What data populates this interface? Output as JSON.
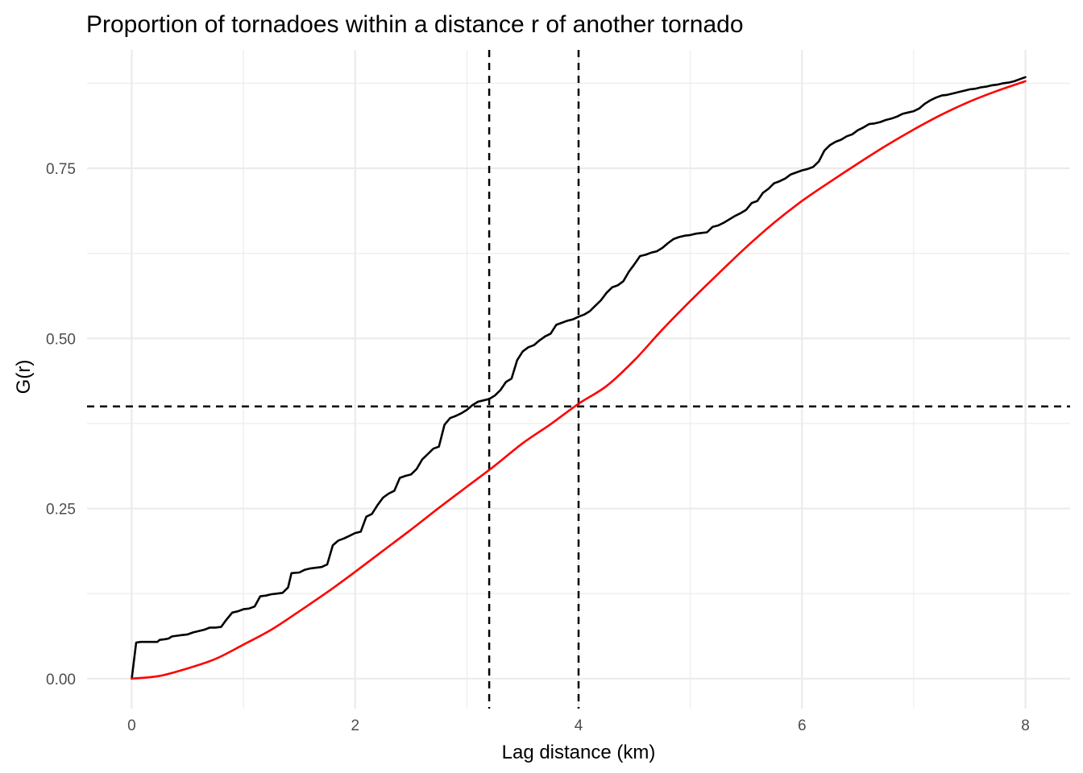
{
  "chart_data": {
    "type": "line",
    "title": "Proportion of tornadoes within a distance r of another tornado",
    "xlabel": "Lag distance (km)",
    "ylabel": "G(r)",
    "xlim": [
      -0.4,
      8.4
    ],
    "ylim": [
      -0.044,
      0.924
    ],
    "x_ticks": [
      "0",
      "2",
      "4",
      "6",
      "8"
    ],
    "y_ticks": [
      "0.00",
      "0.25",
      "0.50",
      "0.75"
    ],
    "grid": true,
    "legend": "none",
    "series": [
      {
        "color": "#000000",
        "points": [
          [
            0,
            0
          ],
          [
            0.04,
            0.053
          ],
          [
            0.08,
            0.054
          ],
          [
            0.15,
            0.054
          ],
          [
            0.2,
            0.054
          ],
          [
            0.23,
            0.054
          ],
          [
            0.25,
            0.057
          ],
          [
            0.3,
            0.058
          ],
          [
            0.33,
            0.059
          ],
          [
            0.36,
            0.062
          ],
          [
            0.4,
            0.063
          ],
          [
            0.45,
            0.064
          ],
          [
            0.5,
            0.065
          ],
          [
            0.55,
            0.068
          ],
          [
            0.6,
            0.07
          ],
          [
            0.65,
            0.072
          ],
          [
            0.7,
            0.075
          ],
          [
            0.75,
            0.075
          ],
          [
            0.8,
            0.076
          ],
          [
            0.84,
            0.085
          ],
          [
            0.9,
            0.097
          ],
          [
            0.95,
            0.099
          ],
          [
            1.0,
            0.102
          ],
          [
            1.05,
            0.103
          ],
          [
            1.1,
            0.106
          ],
          [
            1.15,
            0.121
          ],
          [
            1.2,
            0.122
          ],
          [
            1.25,
            0.124
          ],
          [
            1.3,
            0.125
          ],
          [
            1.35,
            0.126
          ],
          [
            1.4,
            0.134
          ],
          [
            1.43,
            0.155
          ],
          [
            1.5,
            0.156
          ],
          [
            1.55,
            0.16
          ],
          [
            1.6,
            0.162
          ],
          [
            1.65,
            0.163
          ],
          [
            1.7,
            0.164
          ],
          [
            1.75,
            0.168
          ],
          [
            1.8,
            0.196
          ],
          [
            1.85,
            0.203
          ],
          [
            1.9,
            0.206
          ],
          [
            1.95,
            0.21
          ],
          [
            2.0,
            0.214
          ],
          [
            2.05,
            0.216
          ],
          [
            2.1,
            0.238
          ],
          [
            2.15,
            0.242
          ],
          [
            2.2,
            0.255
          ],
          [
            2.25,
            0.266
          ],
          [
            2.3,
            0.272
          ],
          [
            2.35,
            0.276
          ],
          [
            2.4,
            0.295
          ],
          [
            2.45,
            0.298
          ],
          [
            2.5,
            0.3
          ],
          [
            2.55,
            0.308
          ],
          [
            2.6,
            0.322
          ],
          [
            2.65,
            0.33
          ],
          [
            2.7,
            0.338
          ],
          [
            2.75,
            0.341
          ],
          [
            2.8,
            0.373
          ],
          [
            2.85,
            0.383
          ],
          [
            2.9,
            0.386
          ],
          [
            2.95,
            0.39
          ],
          [
            3.0,
            0.395
          ],
          [
            3.05,
            0.402
          ],
          [
            3.1,
            0.407
          ],
          [
            3.15,
            0.409
          ],
          [
            3.2,
            0.411
          ],
          [
            3.25,
            0.416
          ],
          [
            3.3,
            0.424
          ],
          [
            3.35,
            0.436
          ],
          [
            3.4,
            0.441
          ],
          [
            3.45,
            0.468
          ],
          [
            3.5,
            0.481
          ],
          [
            3.55,
            0.487
          ],
          [
            3.6,
            0.49
          ],
          [
            3.65,
            0.497
          ],
          [
            3.7,
            0.503
          ],
          [
            3.75,
            0.507
          ],
          [
            3.8,
            0.52
          ],
          [
            3.85,
            0.523
          ],
          [
            3.9,
            0.526
          ],
          [
            3.95,
            0.528
          ],
          [
            4.0,
            0.532
          ],
          [
            4.05,
            0.535
          ],
          [
            4.1,
            0.54
          ],
          [
            4.15,
            0.548
          ],
          [
            4.2,
            0.556
          ],
          [
            4.25,
            0.567
          ],
          [
            4.3,
            0.575
          ],
          [
            4.35,
            0.578
          ],
          [
            4.4,
            0.584
          ],
          [
            4.45,
            0.598
          ],
          [
            4.5,
            0.609
          ],
          [
            4.55,
            0.621
          ],
          [
            4.6,
            0.623
          ],
          [
            4.65,
            0.626
          ],
          [
            4.7,
            0.628
          ],
          [
            4.75,
            0.633
          ],
          [
            4.8,
            0.64
          ],
          [
            4.85,
            0.646
          ],
          [
            4.9,
            0.649
          ],
          [
            4.95,
            0.651
          ],
          [
            5.0,
            0.652
          ],
          [
            5.05,
            0.654
          ],
          [
            5.1,
            0.655
          ],
          [
            5.15,
            0.656
          ],
          [
            5.2,
            0.664
          ],
          [
            5.25,
            0.666
          ],
          [
            5.3,
            0.67
          ],
          [
            5.35,
            0.675
          ],
          [
            5.4,
            0.68
          ],
          [
            5.45,
            0.684
          ],
          [
            5.5,
            0.689
          ],
          [
            5.55,
            0.699
          ],
          [
            5.6,
            0.702
          ],
          [
            5.65,
            0.714
          ],
          [
            5.7,
            0.72
          ],
          [
            5.75,
            0.728
          ],
          [
            5.8,
            0.731
          ],
          [
            5.85,
            0.735
          ],
          [
            5.9,
            0.741
          ],
          [
            5.95,
            0.744
          ],
          [
            6.0,
            0.747
          ],
          [
            6.05,
            0.749
          ],
          [
            6.1,
            0.752
          ],
          [
            6.15,
            0.76
          ],
          [
            6.2,
            0.776
          ],
          [
            6.25,
            0.784
          ],
          [
            6.3,
            0.789
          ],
          [
            6.35,
            0.792
          ],
          [
            6.4,
            0.797
          ],
          [
            6.45,
            0.8
          ],
          [
            6.5,
            0.806
          ],
          [
            6.55,
            0.81
          ],
          [
            6.6,
            0.815
          ],
          [
            6.65,
            0.816
          ],
          [
            6.7,
            0.818
          ],
          [
            6.75,
            0.821
          ],
          [
            6.8,
            0.823
          ],
          [
            6.85,
            0.826
          ],
          [
            6.9,
            0.83
          ],
          [
            6.95,
            0.832
          ],
          [
            7.0,
            0.834
          ],
          [
            7.05,
            0.838
          ],
          [
            7.1,
            0.845
          ],
          [
            7.15,
            0.85
          ],
          [
            7.2,
            0.854
          ],
          [
            7.25,
            0.857
          ],
          [
            7.3,
            0.858
          ],
          [
            7.35,
            0.86
          ],
          [
            7.4,
            0.862
          ],
          [
            7.45,
            0.864
          ],
          [
            7.5,
            0.866
          ],
          [
            7.55,
            0.867
          ],
          [
            7.6,
            0.869
          ],
          [
            7.65,
            0.87
          ],
          [
            7.7,
            0.872
          ],
          [
            7.75,
            0.873
          ],
          [
            7.8,
            0.875
          ],
          [
            7.85,
            0.876
          ],
          [
            7.9,
            0.878
          ],
          [
            7.95,
            0.881
          ],
          [
            8.0,
            0.884
          ]
        ]
      },
      {
        "color": "#ff0000",
        "points": [
          [
            0.0,
            0.0
          ],
          [
            0.25,
            0.004
          ],
          [
            0.5,
            0.015
          ],
          [
            0.75,
            0.029
          ],
          [
            1.0,
            0.05
          ],
          [
            1.25,
            0.072
          ],
          [
            1.5,
            0.099
          ],
          [
            1.75,
            0.127
          ],
          [
            2.0,
            0.157
          ],
          [
            2.25,
            0.188
          ],
          [
            2.5,
            0.219
          ],
          [
            2.75,
            0.251
          ],
          [
            3.0,
            0.282
          ],
          [
            3.25,
            0.313
          ],
          [
            3.5,
            0.346
          ],
          [
            3.75,
            0.374
          ],
          [
            4.0,
            0.404
          ],
          [
            4.25,
            0.43
          ],
          [
            4.5,
            0.468
          ],
          [
            4.75,
            0.513
          ],
          [
            5.0,
            0.555
          ],
          [
            5.25,
            0.595
          ],
          [
            5.5,
            0.634
          ],
          [
            5.75,
            0.67
          ],
          [
            6.0,
            0.702
          ],
          [
            6.25,
            0.73
          ],
          [
            6.5,
            0.757
          ],
          [
            6.75,
            0.783
          ],
          [
            7.0,
            0.807
          ],
          [
            7.25,
            0.829
          ],
          [
            7.5,
            0.848
          ],
          [
            7.75,
            0.864
          ],
          [
            8.0,
            0.878
          ]
        ]
      }
    ],
    "reference_lines": {
      "vertical_x": [
        3.2,
        4.0
      ],
      "horizontal_y": [
        0.4
      ],
      "style": "dashed",
      "color": "#000000"
    }
  }
}
